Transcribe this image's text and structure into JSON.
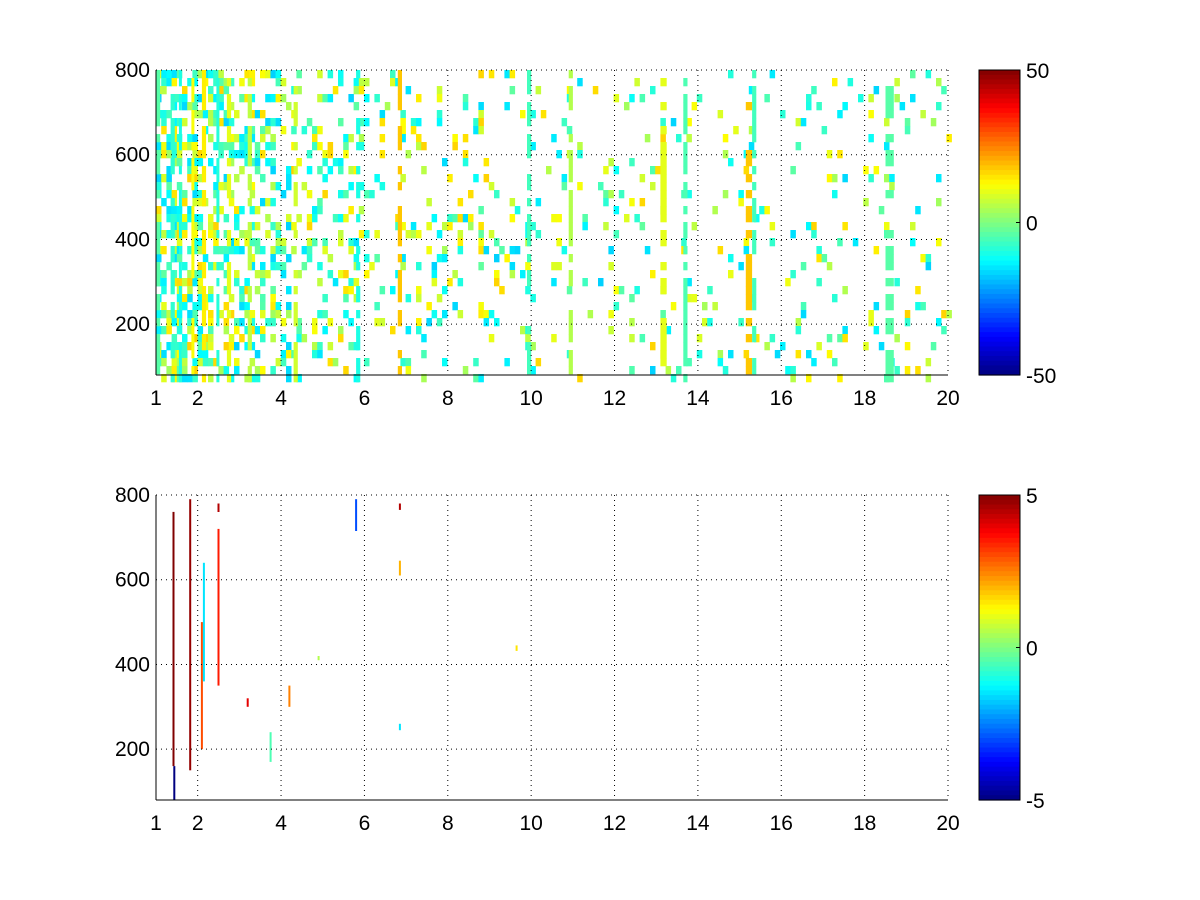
{
  "chart_data": [
    {
      "type": "heatmap",
      "title": "",
      "xlabel": "",
      "ylabel": "",
      "xlim": [
        1,
        20
      ],
      "ylim": [
        80,
        800
      ],
      "xticks": [
        "1",
        "2",
        "4",
        "6",
        "8",
        "10",
        "12",
        "14",
        "16",
        "18",
        "20"
      ],
      "yticks": [
        "200",
        "400",
        "600",
        "800"
      ],
      "grid": true,
      "colormap": "jet",
      "colorbar": {
        "range": [
          -50,
          50
        ],
        "ticks": [
          "50",
          "0",
          "-50"
        ]
      },
      "background_color": "#ffffff",
      "column_bands": [
        {
          "x": [
            1.0,
            1.1
          ],
          "value": -4
        },
        {
          "x": [
            1.35,
            1.45
          ],
          "value": -8
        },
        {
          "x": [
            1.55,
            1.6
          ],
          "value": -10
        },
        {
          "x": [
            1.85,
            1.9
          ],
          "value": 12
        },
        {
          "x": [
            2.1,
            2.2
          ],
          "value": 14
        },
        {
          "x": [
            2.45,
            2.5
          ],
          "value": -9
        },
        {
          "x": [
            2.7,
            2.8
          ],
          "value": 10
        },
        {
          "x": [
            3.2,
            3.3
          ],
          "value": 6
        },
        {
          "x": [
            4.3,
            4.4
          ],
          "value": 8
        },
        {
          "x": [
            5.8,
            5.9
          ],
          "value": -10
        },
        {
          "x": [
            6.8,
            6.9
          ],
          "value": 18
        },
        {
          "x": [
            9.9,
            10.0
          ],
          "value": -6
        },
        {
          "x": [
            10.9,
            11.0
          ],
          "value": 5
        },
        {
          "x": [
            13.1,
            13.25
          ],
          "value": 10
        },
        {
          "x": [
            13.65,
            13.75
          ],
          "value": -5
        },
        {
          "x": [
            15.15,
            15.3
          ],
          "value": 18
        },
        {
          "x": [
            15.3,
            15.4
          ],
          "value": -6
        },
        {
          "x": [
            18.5,
            18.7
          ],
          "value": -4
        }
      ]
    },
    {
      "type": "heatmap",
      "title": "",
      "xlabel": "",
      "ylabel": "",
      "xlim": [
        1,
        20
      ],
      "ylim": [
        80,
        800
      ],
      "xticks": [
        "1",
        "2",
        "4",
        "6",
        "8",
        "10",
        "12",
        "14",
        "16",
        "18",
        "20"
      ],
      "yticks": [
        "200",
        "400",
        "600",
        "800"
      ],
      "grid": true,
      "colormap": "jet",
      "colorbar": {
        "range": [
          -5,
          5
        ],
        "ticks": [
          "5",
          "0",
          "-5"
        ]
      },
      "background_color": "#ffffff",
      "segments": [
        {
          "x": 1.42,
          "y": [
            160,
            760
          ],
          "value": 5
        },
        {
          "x": 1.44,
          "y": [
            80,
            160
          ],
          "value": -5
        },
        {
          "x": 1.82,
          "y": [
            150,
            790
          ],
          "value": 4.8
        },
        {
          "x": 2.1,
          "y": [
            200,
            500
          ],
          "value": 3
        },
        {
          "x": 2.15,
          "y": [
            360,
            640
          ],
          "value": -1.5
        },
        {
          "x": 2.5,
          "y": [
            350,
            720
          ],
          "value": 3.5
        },
        {
          "x": 2.5,
          "y": [
            760,
            780
          ],
          "value": 4.5
        },
        {
          "x": 3.2,
          "y": [
            300,
            320
          ],
          "value": 4
        },
        {
          "x": 3.75,
          "y": [
            170,
            240
          ],
          "value": -0.5
        },
        {
          "x": 4.2,
          "y": [
            300,
            350
          ],
          "value": 2.5
        },
        {
          "x": 4.9,
          "y": [
            410,
            420
          ],
          "value": 0.5
        },
        {
          "x": 5.8,
          "y": [
            715,
            790
          ],
          "value": -3
        },
        {
          "x": 6.85,
          "y": [
            610,
            645
          ],
          "value": 2
        },
        {
          "x": 6.85,
          "y": [
            765,
            780
          ],
          "value": 4.5
        },
        {
          "x": 6.85,
          "y": [
            245,
            260
          ],
          "value": -1.5
        },
        {
          "x": 9.65,
          "y": [
            432,
            445
          ],
          "value": 1.5
        }
      ]
    }
  ]
}
